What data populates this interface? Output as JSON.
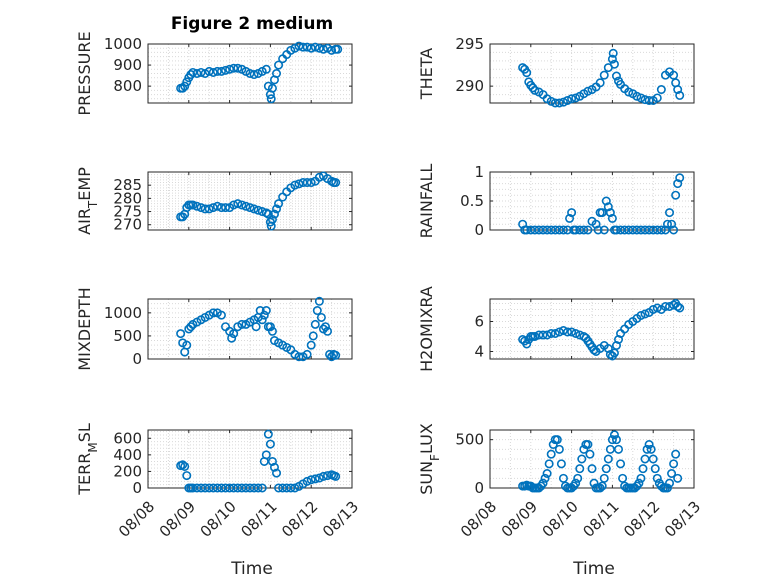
{
  "figure_title": "Figure 2 medium",
  "x_axis_label": "Time",
  "x_tick_labels": [
    "08/08",
    "08/09",
    "08/10",
    "08/11",
    "08/12",
    "08/13"
  ],
  "colors": {
    "marker": "#0072bd",
    "axis": "#262626",
    "grid": "#d9d9d9"
  },
  "chart_data": [
    {
      "type": "scatter",
      "ylabel": "PRESSURE",
      "ylim": [
        720,
        1000
      ],
      "yticks": [
        800,
        900,
        1000
      ],
      "ytick_labels": [
        "800",
        "900",
        "1000"
      ],
      "xlim": [
        0,
        5
      ],
      "grid": true,
      "x": [
        0.8,
        0.85,
        0.9,
        0.95,
        1.0,
        1.05,
        1.1,
        1.2,
        1.3,
        1.4,
        1.5,
        1.6,
        1.7,
        1.8,
        1.9,
        2.0,
        2.1,
        2.2,
        2.3,
        2.4,
        2.5,
        2.6,
        2.7,
        2.8,
        2.9,
        2.95,
        3.0,
        3.02,
        3.05,
        3.1,
        3.15,
        3.2,
        3.3,
        3.4,
        3.5,
        3.6,
        3.7,
        3.8,
        3.9,
        4.0,
        4.1,
        4.2,
        4.3,
        4.4,
        4.5,
        4.6,
        4.65
      ],
      "values": [
        790,
        790,
        800,
        820,
        840,
        855,
        865,
        860,
        865,
        860,
        870,
        865,
        870,
        870,
        875,
        880,
        885,
        885,
        880,
        870,
        860,
        855,
        860,
        870,
        880,
        800,
        760,
        740,
        790,
        830,
        860,
        900,
        930,
        950,
        970,
        980,
        990,
        985,
        985,
        980,
        985,
        980,
        975,
        980,
        970,
        975,
        975
      ]
    },
    {
      "type": "scatter",
      "ylabel": "THETA",
      "ylim": [
        288,
        295
      ],
      "yticks": [
        290,
        295
      ],
      "ytick_labels": [
        "290",
        "295"
      ],
      "xlim": [
        0,
        5
      ],
      "grid": true,
      "x": [
        0.8,
        0.85,
        0.9,
        0.95,
        1.0,
        1.05,
        1.1,
        1.2,
        1.3,
        1.4,
        1.5,
        1.6,
        1.7,
        1.8,
        1.9,
        2.0,
        2.1,
        2.2,
        2.3,
        2.4,
        2.5,
        2.6,
        2.7,
        2.8,
        2.9,
        3.0,
        3.02,
        3.05,
        3.1,
        3.15,
        3.2,
        3.3,
        3.4,
        3.5,
        3.6,
        3.7,
        3.8,
        3.9,
        4.0,
        4.1,
        4.2,
        4.3,
        4.4,
        4.5,
        4.55,
        4.6,
        4.65
      ],
      "values": [
        292.2,
        292,
        291.6,
        290.5,
        290.1,
        289.8,
        289.5,
        289.3,
        289,
        288.5,
        288.2,
        288,
        288,
        288.1,
        288.3,
        288.5,
        288.6,
        288.8,
        289.1,
        289.4,
        289.6,
        289.9,
        290.4,
        291.3,
        292.2,
        293.2,
        293.9,
        292.6,
        291.2,
        290.6,
        290.2,
        289.7,
        289.3,
        289.1,
        288.8,
        288.6,
        288.4,
        288.3,
        288.3,
        288.6,
        289.6,
        291.3,
        291.7,
        291.3,
        290.4,
        289.6,
        288.9
      ]
    },
    {
      "type": "scatter",
      "ylabel": "AIR_TEMP",
      "ylim": [
        268,
        290
      ],
      "yticks": [
        270,
        275,
        280,
        285
      ],
      "ytick_labels": [
        "270",
        "275",
        "280",
        "285"
      ],
      "xlim": [
        0,
        5
      ],
      "grid": true,
      "x": [
        0.8,
        0.85,
        0.9,
        0.95,
        1.0,
        1.05,
        1.1,
        1.2,
        1.3,
        1.4,
        1.5,
        1.6,
        1.7,
        1.8,
        1.9,
        2.0,
        2.1,
        2.2,
        2.3,
        2.4,
        2.5,
        2.6,
        2.7,
        2.8,
        2.9,
        2.95,
        3.0,
        3.02,
        3.05,
        3.1,
        3.15,
        3.2,
        3.3,
        3.4,
        3.5,
        3.6,
        3.7,
        3.8,
        3.9,
        4.0,
        4.1,
        4.2,
        4.3,
        4.4,
        4.5,
        4.55,
        4.6
      ],
      "values": [
        273,
        273,
        274,
        276.5,
        277.5,
        277.5,
        277.5,
        277,
        276.5,
        276,
        276,
        276.5,
        277,
        276.5,
        276.5,
        276.5,
        277.5,
        278,
        277.5,
        277,
        276.5,
        276,
        275.5,
        275,
        274.5,
        274,
        271,
        269.5,
        272,
        274,
        276,
        278,
        280.5,
        282.5,
        284,
        285,
        285.5,
        286,
        286,
        286,
        286.5,
        288,
        288.5,
        287.5,
        286.5,
        286,
        286
      ]
    },
    {
      "type": "scatter",
      "ylabel": "RAINFALL",
      "ylim": [
        0,
        1
      ],
      "yticks": [
        0,
        0.5,
        1
      ],
      "ytick_labels": [
        "0",
        "0.5",
        "1"
      ],
      "xlim": [
        0,
        5
      ],
      "grid": true,
      "x": [
        0.8,
        0.85,
        0.9,
        1.0,
        1.1,
        1.2,
        1.3,
        1.4,
        1.5,
        1.6,
        1.7,
        1.8,
        1.9,
        1.95,
        2.0,
        2.05,
        2.1,
        2.2,
        2.3,
        2.4,
        2.5,
        2.6,
        2.65,
        2.7,
        2.75,
        2.8,
        2.85,
        2.9,
        2.95,
        3.0,
        3.05,
        3.1,
        3.2,
        3.3,
        3.4,
        3.5,
        3.6,
        3.7,
        3.8,
        3.9,
        4.0,
        4.1,
        4.2,
        4.3,
        4.35,
        4.4,
        4.45,
        4.5,
        4.55,
        4.6,
        4.65
      ],
      "values": [
        0.1,
        0,
        0,
        0,
        0,
        0,
        0,
        0,
        0,
        0,
        0,
        0,
        0,
        0.2,
        0.3,
        0,
        0,
        0,
        0,
        0,
        0.15,
        0.1,
        0,
        0.3,
        0.3,
        0,
        0.5,
        0.4,
        0.3,
        0.2,
        0,
        0,
        0,
        0,
        0,
        0,
        0,
        0,
        0,
        0,
        0,
        0,
        0,
        0,
        0.1,
        0.3,
        0.1,
        0,
        0.6,
        0.8,
        0.9
      ]
    },
    {
      "type": "scatter",
      "ylabel": "MIXDEPTH",
      "ylim": [
        0,
        1300
      ],
      "yticks": [
        0,
        500,
        1000
      ],
      "ytick_labels": [
        "0",
        "500",
        "1000"
      ],
      "xlim": [
        0,
        5
      ],
      "grid": true,
      "x": [
        0.8,
        0.85,
        0.9,
        0.95,
        1.0,
        1.05,
        1.1,
        1.2,
        1.3,
        1.4,
        1.5,
        1.6,
        1.7,
        1.8,
        1.9,
        2.0,
        2.05,
        2.1,
        2.2,
        2.3,
        2.4,
        2.5,
        2.6,
        2.65,
        2.7,
        2.75,
        2.8,
        2.85,
        2.9,
        2.95,
        3.0,
        3.05,
        3.1,
        3.2,
        3.3,
        3.4,
        3.5,
        3.6,
        3.7,
        3.8,
        3.9,
        4.0,
        4.05,
        4.1,
        4.15,
        4.2,
        4.25,
        4.3,
        4.35,
        4.4,
        4.45,
        4.5,
        4.55,
        4.6
      ],
      "values": [
        550,
        350,
        150,
        300,
        650,
        700,
        750,
        800,
        850,
        900,
        950,
        1000,
        1000,
        950,
        700,
        600,
        450,
        550,
        700,
        750,
        750,
        800,
        850,
        700,
        900,
        1050,
        850,
        950,
        1050,
        700,
        700,
        600,
        400,
        350,
        300,
        250,
        200,
        100,
        50,
        50,
        100,
        300,
        500,
        750,
        1050,
        1250,
        900,
        650,
        700,
        600,
        100,
        50,
        100,
        80
      ]
    },
    {
      "type": "scatter",
      "ylabel": "H2OMIXRA",
      "ylim": [
        3.5,
        7.5
      ],
      "yticks": [
        4,
        6
      ],
      "ytick_labels": [
        "4",
        "6"
      ],
      "xlim": [
        0,
        5
      ],
      "grid": true,
      "x": [
        0.8,
        0.85,
        0.9,
        0.95,
        1.0,
        1.05,
        1.1,
        1.2,
        1.3,
        1.4,
        1.5,
        1.6,
        1.7,
        1.8,
        1.9,
        2.0,
        2.1,
        2.2,
        2.3,
        2.35,
        2.4,
        2.45,
        2.5,
        2.55,
        2.6,
        2.7,
        2.8,
        2.9,
        2.95,
        3.0,
        3.05,
        3.1,
        3.15,
        3.2,
        3.3,
        3.4,
        3.5,
        3.6,
        3.7,
        3.8,
        3.9,
        4.0,
        4.1,
        4.2,
        4.3,
        4.4,
        4.5,
        4.55,
        4.6,
        4.65
      ],
      "values": [
        4.8,
        4.7,
        4.5,
        4.8,
        5.0,
        5.0,
        5.0,
        5.1,
        5.1,
        5.1,
        5.2,
        5.2,
        5.3,
        5.4,
        5.3,
        5.3,
        5.2,
        5.1,
        5.0,
        4.9,
        4.7,
        4.5,
        4.3,
        4.1,
        4.0,
        4.2,
        4.4,
        4.2,
        3.8,
        3.7,
        3.9,
        4.4,
        4.8,
        5.2,
        5.5,
        5.8,
        6.0,
        6.2,
        6.4,
        6.5,
        6.6,
        6.8,
        6.9,
        6.8,
        7.0,
        7.0,
        7.1,
        7.2,
        7.0,
        6.9
      ]
    },
    {
      "type": "scatter",
      "ylabel": "TERR_MSL",
      "ylim": [
        0,
        700
      ],
      "yticks": [
        0,
        200,
        400,
        600
      ],
      "ytick_labels": [
        "0",
        "200",
        "400",
        "600"
      ],
      "xlim": [
        0,
        5
      ],
      "grid": true,
      "x": [
        0.8,
        0.85,
        0.9,
        0.95,
        1.0,
        1.05,
        1.1,
        1.2,
        1.3,
        1.4,
        1.5,
        1.6,
        1.7,
        1.8,
        1.9,
        2.0,
        2.1,
        2.2,
        2.3,
        2.4,
        2.5,
        2.6,
        2.7,
        2.8,
        2.85,
        2.9,
        2.95,
        3.0,
        3.05,
        3.1,
        3.15,
        3.2,
        3.3,
        3.4,
        3.5,
        3.6,
        3.7,
        3.8,
        3.9,
        4.0,
        4.1,
        4.2,
        4.3,
        4.4,
        4.5,
        4.55,
        4.6
      ],
      "values": [
        270,
        280,
        260,
        150,
        0,
        0,
        0,
        0,
        0,
        0,
        0,
        0,
        0,
        0,
        0,
        0,
        0,
        0,
        0,
        0,
        0,
        0,
        0,
        0,
        320,
        400,
        650,
        530,
        320,
        250,
        180,
        0,
        0,
        0,
        0,
        0,
        20,
        50,
        80,
        100,
        110,
        120,
        140,
        150,
        160,
        150,
        140
      ]
    },
    {
      "type": "scatter",
      "ylabel": "SUN_FLUX",
      "ylim": [
        0,
        600
      ],
      "yticks": [
        0,
        500
      ],
      "ytick_labels": [
        "0",
        "500"
      ],
      "xlim": [
        0,
        5
      ],
      "grid": true,
      "x": [
        0.8,
        0.85,
        0.9,
        0.95,
        1.0,
        1.05,
        1.1,
        1.15,
        1.2,
        1.25,
        1.3,
        1.35,
        1.4,
        1.45,
        1.5,
        1.55,
        1.6,
        1.65,
        1.7,
        1.75,
        1.8,
        1.85,
        1.9,
        1.95,
        2.0,
        2.05,
        2.1,
        2.15,
        2.2,
        2.25,
        2.3,
        2.35,
        2.4,
        2.45,
        2.5,
        2.55,
        2.6,
        2.65,
        2.7,
        2.75,
        2.8,
        2.85,
        2.9,
        2.95,
        3.0,
        3.05,
        3.1,
        3.15,
        3.2,
        3.25,
        3.3,
        3.35,
        3.4,
        3.45,
        3.5,
        3.55,
        3.6,
        3.65,
        3.7,
        3.75,
        3.8,
        3.85,
        3.9,
        3.95,
        4.0,
        4.05,
        4.1,
        4.15,
        4.2,
        4.25,
        4.3,
        4.35,
        4.4,
        4.45,
        4.5,
        4.55,
        4.6
      ],
      "values": [
        20,
        20,
        30,
        20,
        20,
        0,
        0,
        0,
        0,
        20,
        50,
        100,
        150,
        250,
        350,
        450,
        500,
        500,
        400,
        250,
        100,
        20,
        0,
        0,
        0,
        20,
        50,
        100,
        200,
        300,
        400,
        450,
        450,
        350,
        200,
        50,
        0,
        0,
        0,
        20,
        100,
        200,
        300,
        400,
        500,
        550,
        500,
        400,
        250,
        100,
        20,
        0,
        0,
        0,
        0,
        0,
        20,
        50,
        100,
        200,
        300,
        400,
        450,
        400,
        300,
        200,
        100,
        50,
        20,
        0,
        0,
        0,
        50,
        150,
        250,
        350,
        100
      ]
    }
  ]
}
